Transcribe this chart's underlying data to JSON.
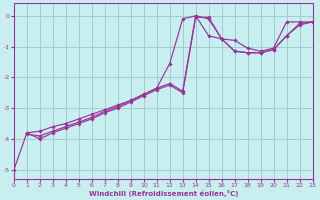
{
  "bg_color": "#c8eef0",
  "grid_color": "#a0ccd0",
  "line_color": "#993399",
  "xlabel": "Windchill (Refroidissement éolien,°C)",
  "xlim": [
    0,
    23
  ],
  "ylim": [
    -5.3,
    0.4
  ],
  "xticks": [
    0,
    1,
    2,
    3,
    4,
    5,
    6,
    7,
    8,
    9,
    10,
    11,
    12,
    13,
    14,
    15,
    16,
    17,
    18,
    19,
    20,
    21,
    22,
    23
  ],
  "yticks": [
    0,
    -1,
    -2,
    -3,
    -4,
    -5
  ],
  "series1_x": [
    0,
    1,
    2,
    3,
    4,
    5,
    6,
    7,
    8,
    9,
    10,
    11,
    12,
    13,
    14,
    15,
    16,
    17,
    18,
    19,
    20,
    21,
    22,
    23
  ],
  "series1_y": [
    -5.0,
    -3.8,
    -3.75,
    -3.6,
    -3.5,
    -3.35,
    -3.2,
    -3.05,
    -2.9,
    -2.75,
    -2.55,
    -2.35,
    -1.55,
    -0.1,
    0.0,
    -0.65,
    -0.75,
    -0.8,
    -1.05,
    -1.15,
    -1.05,
    -0.2,
    -0.2,
    -0.2
  ],
  "series2_x": [
    1,
    2,
    3,
    4,
    5,
    6,
    7,
    8,
    9,
    10,
    11,
    12,
    13,
    14,
    15,
    16,
    17,
    18,
    19,
    20,
    21,
    22,
    23
  ],
  "series2_y": [
    -3.8,
    -4.0,
    -3.8,
    -3.65,
    -3.5,
    -3.35,
    -3.15,
    -3.0,
    -2.8,
    -2.6,
    -2.4,
    -2.25,
    -2.5,
    -0.05,
    -0.05,
    -0.75,
    -1.15,
    -1.2,
    -1.2,
    -1.1,
    -0.65,
    -0.25,
    -0.2
  ],
  "series3_x": [
    1,
    2,
    3,
    4,
    5,
    6,
    7,
    8,
    9,
    10,
    11,
    12,
    13,
    14,
    15,
    16,
    17,
    18,
    19,
    20,
    21,
    22,
    23
  ],
  "series3_y": [
    -3.85,
    -3.9,
    -3.75,
    -3.6,
    -3.45,
    -3.3,
    -3.1,
    -2.95,
    -2.75,
    -2.55,
    -2.35,
    -2.2,
    -2.45,
    0.0,
    -0.1,
    -0.75,
    -1.15,
    -1.2,
    -1.2,
    -1.1,
    -0.65,
    -0.3,
    -0.2
  ]
}
